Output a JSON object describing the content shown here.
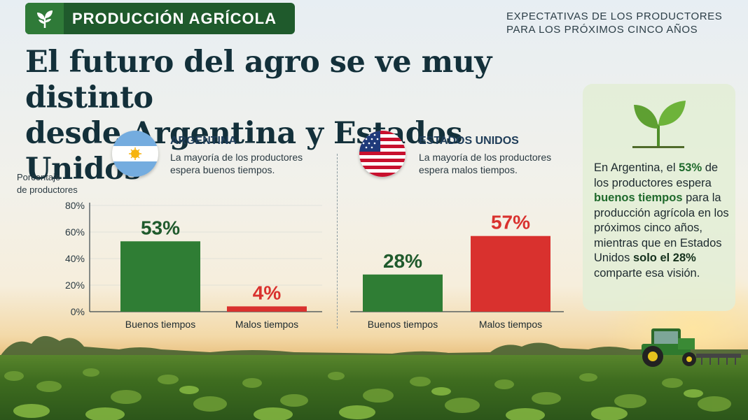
{
  "badge": {
    "label": "PRODUCCIÓN AGRÍCOLA",
    "icon": "sprout-icon"
  },
  "kicker": {
    "line1": "EXPECTATIVAS DE LOS PRODUCTORES",
    "line2": "PARA LOS PRÓXIMOS CINCO AÑOS"
  },
  "headline": {
    "line1": "El futuro del agro se ve muy distinto",
    "line2": "desde Argentina y Estados Unidos"
  },
  "argentina": {
    "name": "ARGENTINA",
    "desc_line1": "La mayoría de los productores",
    "desc_line2": "espera buenos tiempos.",
    "flag": "argentina-flag-icon"
  },
  "usa": {
    "name": "ESTADOS UNIDOS",
    "desc_line1": "La mayoría de los productores",
    "desc_line2": "espera malos tiempos.",
    "flag": "usa-flag-icon"
  },
  "yaxis": {
    "line1": "Porcentaje",
    "line2": "de productores"
  },
  "colors": {
    "good": "#2f7d34",
    "bad": "#d9312e",
    "header_bg": "#1f5a2c",
    "good_label": "#1f5a2c",
    "bad_label": "#d9312e"
  },
  "chart_data": {
    "type": "bar",
    "ylabel": "Porcentaje de productores",
    "ylim": [
      0,
      80
    ],
    "yticks": [
      "0%",
      "20%",
      "40%",
      "60%",
      "80%"
    ],
    "yticks_values": [
      0,
      20,
      40,
      60,
      80
    ],
    "groups": [
      {
        "name": "ARGENTINA",
        "categories": [
          "Buenos tiempos",
          "Malos tiempos"
        ],
        "values": [
          53,
          4
        ],
        "labels": [
          "53%",
          "4%"
        ]
      },
      {
        "name": "ESTADOS UNIDOS",
        "categories": [
          "Buenos tiempos",
          "Malos tiempos"
        ],
        "values": [
          28,
          57
        ],
        "labels": [
          "28%",
          "57%"
        ]
      }
    ]
  },
  "panel": {
    "icon": "seedling-icon",
    "t1": "En Argentina, el ",
    "t2": "53%",
    "t3": " de los productores espera ",
    "t4": "buenos tiempos",
    "t5": " para la producción agrícola en los próximos cinco años, mientras que en Estados Unidos ",
    "t6": "solo el 28%",
    "t7": " comparte esa visión."
  }
}
